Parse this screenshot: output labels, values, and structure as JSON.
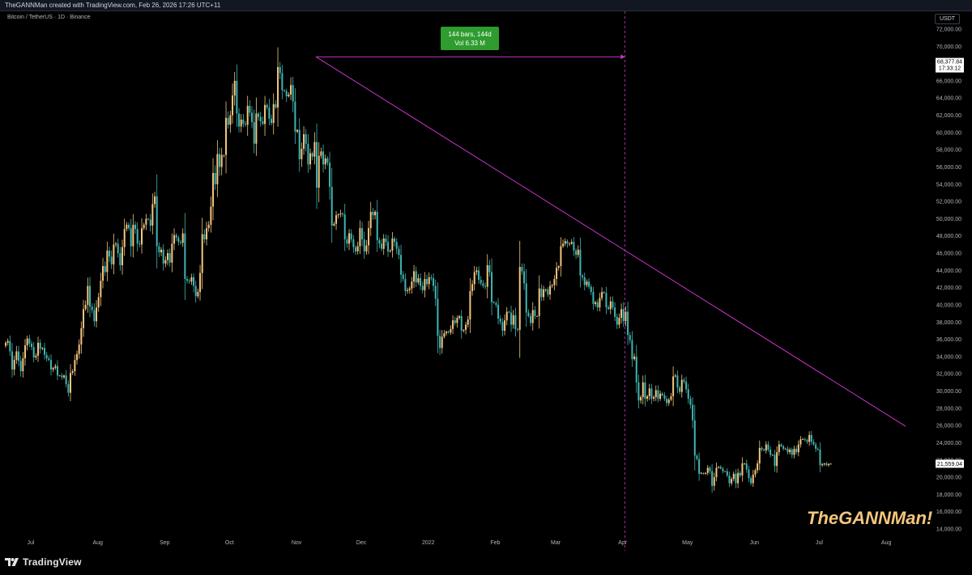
{
  "header": {
    "attribution": "TheGANNMan created with TradingView.com, Feb 26, 2026 17:26 UTC+11"
  },
  "chart": {
    "symbol": "Bitcoin / TetherUS · 1D · Binance",
    "currency": "USDT",
    "watermark": "TheGANNMan!",
    "brand": "TradingView",
    "measure_label_line1": "144 bars, 144d",
    "measure_label_line2": "Vol 6.33 M",
    "last_price": "21,559.04",
    "peak_price_label": "68,377.84",
    "peak_countdown": "17:33:12"
  },
  "colors": {
    "background": "#000000",
    "candle_up": "#f5c67e",
    "candle_down": "#3fb6b2",
    "trendline": "#c934c9",
    "measure_box": "#2e9c2e",
    "axis_text": "#b2b5be"
  },
  "chart_data": {
    "type": "candlestick",
    "title": "Bitcoin / TetherUS · 1D · Binance",
    "ylabel": "USDT",
    "ylim": [
      13000,
      73000
    ],
    "y_ticks": [
      72000,
      70000,
      66000,
      64000,
      62000,
      60000,
      58000,
      56000,
      54000,
      52000,
      50000,
      48000,
      46000,
      44000,
      42000,
      40000,
      38000,
      36000,
      34000,
      32000,
      30000,
      28000,
      26000,
      24000,
      22000,
      20000,
      18000,
      16000,
      14000
    ],
    "x_ticks": [
      {
        "label": "Jul",
        "day": 0
      },
      {
        "label": "Aug",
        "day": 31
      },
      {
        "label": "Sep",
        "day": 62
      },
      {
        "label": "Oct",
        "day": 92
      },
      {
        "label": "Nov",
        "day": 123
      },
      {
        "label": "Dec",
        "day": 153
      },
      {
        "label": "2022",
        "day": 184
      },
      {
        "label": "Feb",
        "day": 215
      },
      {
        "label": "Mar",
        "day": 243
      },
      {
        "label": "Apr",
        "day": 274
      },
      {
        "label": "May",
        "day": 304
      },
      {
        "label": "Jun",
        "day": 335
      },
      {
        "label": "Jul",
        "day": 365
      },
      {
        "label": "Aug",
        "day": 396
      }
    ],
    "start_date": "2021-06-18",
    "closes": [
      35600,
      35800,
      34600,
      32500,
      33600,
      34600,
      33500,
      32300,
      33800,
      35300,
      36100,
      35500,
      35100,
      33900,
      34100,
      35600,
      34900,
      35000,
      34200,
      33800,
      33600,
      32500,
      32700,
      32900,
      31800,
      31800,
      31600,
      31800,
      30800,
      29800,
      32100,
      32300,
      33600,
      34300,
      35400,
      37300,
      39500,
      40000,
      42200,
      39800,
      39400,
      38100,
      39700,
      40900,
      42800,
      44500,
      43800,
      46300,
      45600,
      44700,
      47000,
      47100,
      46000,
      44600,
      46700,
      48800,
      49300,
      48900,
      46800,
      49300,
      48800,
      47100,
      47000,
      48900,
      49300,
      50000,
      49900,
      49200,
      51700,
      52600,
      46800,
      46100,
      46400,
      44800,
      45200,
      46000,
      44900,
      47100,
      48100,
      47800,
      47300,
      47200,
      48300,
      43000,
      42800,
      42700,
      43200,
      42200,
      41000,
      41500,
      43700,
      48200,
      47600,
      48900,
      49300,
      51400,
      55300,
      54000,
      57500,
      56000,
      57400,
      57400,
      61700,
      60900,
      62000,
      64300,
      66000,
      62200,
      60700,
      61500,
      61000,
      60900,
      63100,
      62300,
      61200,
      58700,
      62200,
      61800,
      61300,
      61000,
      63200,
      62900,
      61600,
      61100,
      63300,
      62900,
      67600,
      66900,
      64900,
      64800,
      64200,
      64400,
      65500,
      63600,
      60100,
      60300,
      56900,
      58100,
      59800,
      58700,
      56300,
      57600,
      57200,
      58900,
      53600,
      57300,
      57800,
      56300,
      57000,
      56500,
      53700,
      49200,
      49400,
      50400,
      50500,
      50600,
      50500,
      47600,
      47100,
      48300,
      47600,
      46700,
      46200,
      46800,
      48900,
      47600,
      46200,
      46900,
      48900,
      50800,
      50400,
      50800,
      47500,
      47100,
      46500,
      47700,
      47300,
      46200,
      46300,
      47700,
      47300,
      46500,
      45800,
      43500,
      43000,
      41600,
      41700,
      41900,
      42700,
      43900,
      42600,
      43100,
      42200,
      41700,
      43000,
      42400,
      43200,
      43100,
      42200,
      40700,
      36400,
      35000,
      36300,
      36700,
      36900,
      36800,
      37200,
      38200,
      37900,
      38500,
      38700,
      37000,
      37100,
      37700,
      38300,
      41600,
      42400,
      43800,
      44000,
      42900,
      42500,
      42200,
      42100,
      44600,
      43800,
      40300,
      40200,
      40000,
      38400,
      38000,
      37000,
      38200,
      39200,
      39100,
      37700,
      38800,
      37200,
      37100,
      44400,
      43900,
      42500,
      39100,
      38700,
      37900,
      39400,
      38700,
      38700,
      41900,
      40900,
      41800,
      41800,
      41200,
      42200,
      42300,
      43000,
      44300,
      44500,
      46800,
      47100,
      47400,
      47100,
      47100,
      47300,
      46300,
      45800,
      46400,
      43400,
      43200,
      42300,
      42700,
      42100,
      41500,
      40100,
      40300,
      39700,
      40800,
      41500,
      41400,
      39700,
      39500,
      40400,
      39700,
      38600,
      37700,
      38500,
      39500,
      38100,
      39200,
      36500,
      35900,
      33700,
      34000,
      31000,
      28900,
      29300,
      31000,
      29100,
      29400,
      30300,
      29100,
      29300,
      30100,
      29100,
      29700,
      29500,
      29100,
      28600,
      29000,
      29400,
      31700,
      31800,
      30400,
      29900,
      31300,
      31100,
      30200,
      29100,
      28400,
      26600,
      22500,
      22100,
      20400,
      20500,
      20400,
      20500,
      21100,
      20700,
      19000,
      20000,
      21100,
      21200,
      21000,
      20700,
      20700,
      20200,
      19300,
      19800,
      20400,
      19300,
      20500,
      20200,
      21600,
      21600,
      20900,
      19900,
      19300,
      20300,
      20800,
      21600,
      23400,
      23200,
      23100,
      23800,
      23200,
      22600,
      22600,
      21300,
      22900,
      23800,
      23600,
      23300,
      23300,
      22900,
      23200,
      22600,
      23300,
      22900,
      23800,
      24400,
      24400,
      24300,
      24100,
      24900,
      24100,
      23800,
      23300,
      23200,
      21400,
      21500,
      21600,
      21400,
      21530,
      21559
    ]
  },
  "drawings": {
    "trendline": {
      "from": {
        "day": 144,
        "price": 68789
      },
      "to": {
        "day": 417,
        "price": 25900
      }
    },
    "date_range": {
      "from": {
        "day": 144,
        "price": 68789
      },
      "to": {
        "day": 287,
        "price": 68789
      },
      "vertical_day": 287
    }
  }
}
